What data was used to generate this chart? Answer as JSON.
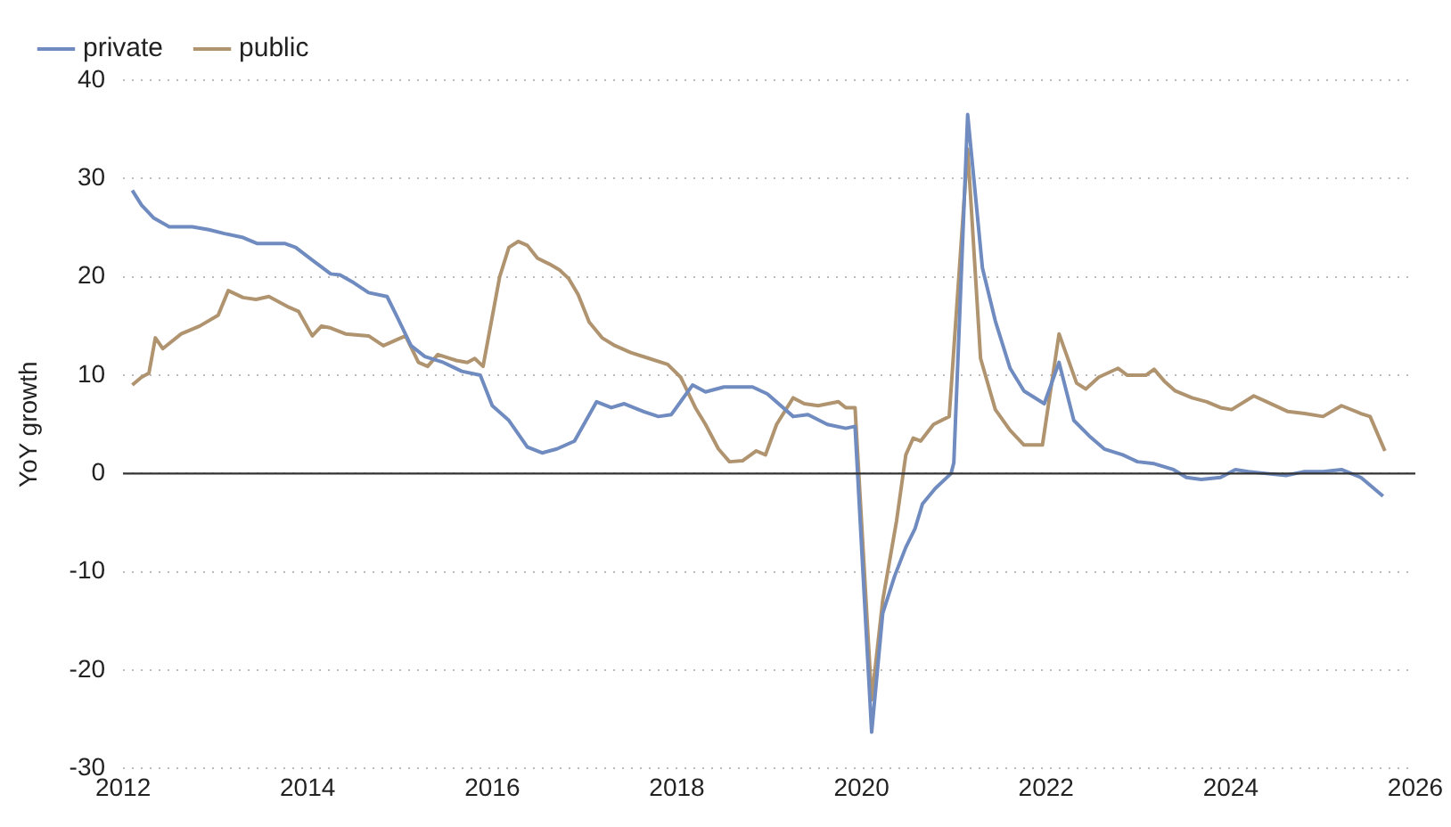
{
  "chart_data": {
    "type": "line",
    "ylabel": "YoY growth",
    "xlim": [
      2012,
      2026
    ],
    "xticks": [
      2012,
      2014,
      2016,
      2018,
      2020,
      2022,
      2024,
      2026
    ],
    "ylim": [
      -30,
      40
    ],
    "yticks": [
      -30,
      -20,
      -10,
      0,
      10,
      20,
      30,
      40
    ],
    "grid": "y",
    "legend": "top left",
    "marker": "none",
    "line_style": "solid",
    "ref_lines": [
      {
        "axis": "y",
        "value": 0,
        "color": "#333333"
      }
    ],
    "series": [
      {
        "name": "private",
        "color": "#6f8bbf",
        "x": [
          2012.1,
          2012.2,
          2012.33,
          2012.5,
          2012.75,
          2012.93,
          2013.1,
          2013.3,
          2013.45,
          2013.75,
          2013.87,
          2014.05,
          2014.25,
          2014.35,
          2014.5,
          2014.66,
          2014.86,
          2014.96,
          2015.12,
          2015.27,
          2015.47,
          2015.67,
          2015.87,
          2016.0,
          2016.18,
          2016.38,
          2016.54,
          2016.7,
          2016.89,
          2017.13,
          2017.29,
          2017.43,
          2017.64,
          2017.8,
          2017.94,
          2018.17,
          2018.31,
          2018.51,
          2018.82,
          2018.98,
          2019.26,
          2019.42,
          2019.63,
          2019.83,
          2019.93,
          2020.11,
          2020.23,
          2020.36,
          2020.48,
          2020.58,
          2020.66,
          2020.8,
          2020.97,
          2021.0,
          2021.15,
          2021.31,
          2021.45,
          2021.61,
          2021.76,
          2021.98,
          2022.14,
          2022.3,
          2022.47,
          2022.63,
          2022.83,
          2022.99,
          2023.17,
          2023.38,
          2023.52,
          2023.68,
          2023.89,
          2024.05,
          2024.19,
          2024.39,
          2024.6,
          2024.8,
          2025.0,
          2025.2,
          2025.41,
          2025.65
        ],
        "values": [
          28.8,
          27.3,
          26,
          25.1,
          25.1,
          24.8,
          24.4,
          24,
          23.4,
          23.4,
          23,
          21.7,
          20.3,
          20.2,
          19.4,
          18.4,
          18,
          16.1,
          13,
          11.9,
          11.3,
          10.4,
          10,
          6.9,
          5.4,
          2.7,
          2.1,
          2.5,
          3.3,
          7.3,
          6.7,
          7.1,
          6.3,
          5.8,
          6,
          9,
          8.3,
          8.8,
          8.8,
          8.1,
          5.8,
          6,
          5,
          4.6,
          4.8,
          -26.3,
          -14.2,
          -10.4,
          -7.5,
          -5.6,
          -3.1,
          -1.5,
          0,
          1.1,
          36.5,
          20.9,
          15.5,
          10.7,
          8.4,
          7.1,
          11.3,
          5.4,
          3.8,
          2.5,
          1.9,
          1.2,
          1,
          0.4,
          -0.4,
          -0.6,
          -0.4,
          0.4,
          0.2,
          0,
          -0.2,
          0.2,
          0.2,
          0.4,
          -0.4,
          -2.3
        ]
      },
      {
        "name": "public",
        "color": "#b09470",
        "x": [
          2012.1,
          2012.2,
          2012.28,
          2012.35,
          2012.43,
          2012.63,
          2012.83,
          2013.03,
          2013.14,
          2013.3,
          2013.44,
          2013.58,
          2013.8,
          2013.9,
          2014.05,
          2014.15,
          2014.25,
          2014.41,
          2014.66,
          2014.82,
          2015.06,
          2015.2,
          2015.3,
          2015.41,
          2015.61,
          2015.73,
          2015.81,
          2015.9,
          2016.08,
          2016.18,
          2016.28,
          2016.38,
          2016.49,
          2016.62,
          2016.73,
          2016.83,
          2016.93,
          2017.05,
          2017.19,
          2017.33,
          2017.5,
          2017.7,
          2017.9,
          2018.04,
          2018.2,
          2018.31,
          2018.45,
          2018.57,
          2018.71,
          2018.86,
          2018.96,
          2019.08,
          2019.26,
          2019.38,
          2019.53,
          2019.75,
          2019.83,
          2019.93,
          2020.11,
          2020.23,
          2020.38,
          2020.48,
          2020.56,
          2020.64,
          2020.78,
          2020.95,
          2021.15,
          2021.29,
          2021.45,
          2021.61,
          2021.76,
          2021.96,
          2022.14,
          2022.33,
          2022.43,
          2022.57,
          2022.78,
          2022.88,
          2023.08,
          2023.17,
          2023.28,
          2023.4,
          2023.58,
          2023.74,
          2023.89,
          2024.01,
          2024.25,
          2024.39,
          2024.62,
          2024.8,
          2025.0,
          2025.2,
          2025.41,
          2025.51,
          2025.67
        ],
        "values": [
          9,
          9.8,
          10.2,
          13.8,
          12.7,
          14.2,
          15,
          16.1,
          18.6,
          17.9,
          17.7,
          18,
          16.9,
          16.5,
          14,
          15,
          14.8,
          14.2,
          14,
          13,
          14,
          11.3,
          10.9,
          12.1,
          11.5,
          11.3,
          11.7,
          10.9,
          20,
          23,
          23.6,
          23.2,
          21.9,
          21.3,
          20.7,
          19.8,
          18.2,
          15.4,
          13.8,
          13,
          12.3,
          11.7,
          11.1,
          9.8,
          6.7,
          5,
          2.5,
          1.2,
          1.3,
          2.3,
          1.9,
          5,
          7.7,
          7.1,
          6.9,
          7.3,
          6.7,
          6.7,
          -23,
          -12.9,
          -4.8,
          1.9,
          3.6,
          3.3,
          5,
          5.8,
          33,
          11.7,
          6.5,
          4.4,
          2.9,
          2.9,
          14.2,
          9.2,
          8.6,
          9.8,
          10.7,
          10,
          10,
          10.6,
          9.4,
          8.4,
          7.7,
          7.3,
          6.7,
          6.5,
          7.9,
          7.3,
          6.3,
          6.1,
          5.8,
          6.9,
          6.1,
          5.8,
          2.3
        ]
      }
    ]
  }
}
